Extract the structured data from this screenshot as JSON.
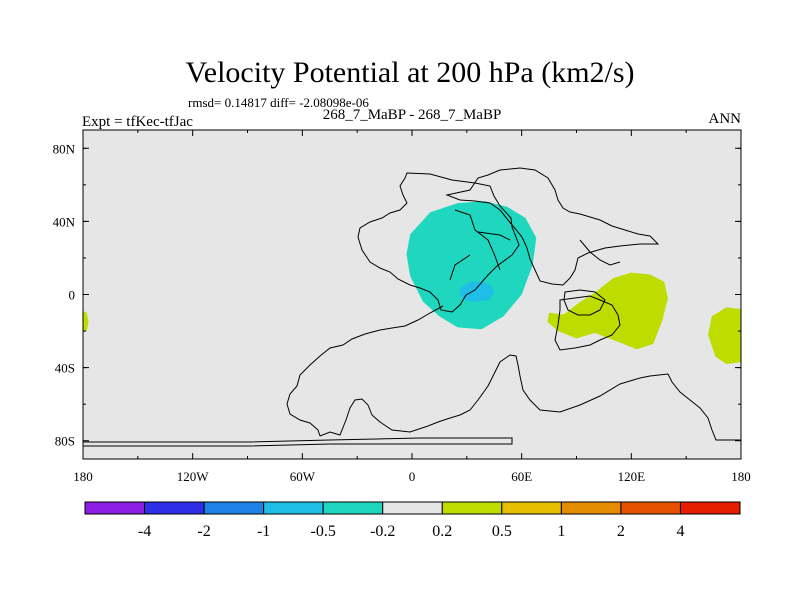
{
  "chart_data": {
    "type": "heatmap",
    "title": "Velocity Potential at 200 hPa (km2/s)",
    "stats": "rmsd= 0.14817 diff= -2.08098e-06",
    "experiment": "Expt = tfKec-tfJac",
    "subtitle": "268_7_MaBP - 268_7_MaBP",
    "season": "ANN",
    "xlim": [
      -180,
      180
    ],
    "ylim": [
      -90,
      90
    ],
    "x_ticks": [
      {
        "value": -180,
        "label": "180"
      },
      {
        "value": -120,
        "label": "120W"
      },
      {
        "value": -60,
        "label": "60W"
      },
      {
        "value": 0,
        "label": "0"
      },
      {
        "value": 60,
        "label": "60E"
      },
      {
        "value": 120,
        "label": "120E"
      },
      {
        "value": 180,
        "label": "180"
      }
    ],
    "y_ticks": [
      {
        "value": 80,
        "label": "80N"
      },
      {
        "value": 40,
        "label": "40N"
      },
      {
        "value": 0,
        "label": "0"
      },
      {
        "value": -40,
        "label": "40S"
      },
      {
        "value": -80,
        "label": "80S"
      }
    ],
    "colorbar": {
      "colors": [
        "#8c1ee6",
        "#2e2ee6",
        "#1e82e6",
        "#1ebee6",
        "#1ed7be",
        "#e6e6e6",
        "#bedc00",
        "#e6be00",
        "#e68c00",
        "#e65000",
        "#e61e00"
      ],
      "labels": [
        "-4",
        "-2",
        "-1",
        "-0.5",
        "-0.2",
        "0.2",
        "0.5",
        "1",
        "2",
        "4"
      ]
    },
    "regions": [
      {
        "name": "-0.5 to -0.2",
        "color": "#1ed7be",
        "points": [
          [
            -1,
            33
          ],
          [
            10,
            45
          ],
          [
            25,
            50
          ],
          [
            40,
            51
          ],
          [
            52,
            48
          ],
          [
            62,
            42
          ],
          [
            68,
            31
          ],
          [
            66,
            16
          ],
          [
            60,
            0
          ],
          [
            50,
            -12
          ],
          [
            38,
            -19
          ],
          [
            25,
            -18
          ],
          [
            15,
            -12
          ],
          [
            6,
            -4
          ],
          [
            -1,
            10
          ],
          [
            -3,
            22
          ]
        ]
      },
      {
        "name": "-1 to -0.5",
        "color": "#1ebee6",
        "points": [
          [
            27,
            4
          ],
          [
            32,
            7
          ],
          [
            38,
            7
          ],
          [
            43,
            5
          ],
          [
            45,
            1
          ],
          [
            42,
            -3
          ],
          [
            35,
            -4
          ],
          [
            29,
            -3
          ],
          [
            26,
            0
          ]
        ]
      },
      {
        "name": "0.2 to 0.5",
        "color": "#bedc00",
        "points": [
          [
            75,
            -10
          ],
          [
            83,
            -11
          ],
          [
            92,
            -4
          ],
          [
            100,
            1
          ],
          [
            110,
            9
          ],
          [
            120,
            12
          ],
          [
            130,
            11
          ],
          [
            138,
            7
          ],
          [
            140,
            -2
          ],
          [
            137,
            -14
          ],
          [
            132,
            -27
          ],
          [
            123,
            -30
          ],
          [
            113,
            -26
          ],
          [
            100,
            -21
          ],
          [
            90,
            -24
          ],
          [
            80,
            -20
          ],
          [
            74,
            -15
          ]
        ]
      },
      {
        "name": "0.2 to 0.5",
        "color": "#bedc00",
        "points": [
          [
            180,
            -8
          ],
          [
            172,
            -7
          ],
          [
            164,
            -12
          ],
          [
            162,
            -22
          ],
          [
            166,
            -34
          ],
          [
            172,
            -38
          ],
          [
            180,
            -37
          ]
        ]
      },
      {
        "name": "0.2 to 0.5",
        "color": "#bedc00",
        "points": [
          [
            -180,
            -9
          ],
          [
            -178,
            -10
          ],
          [
            -177,
            -15
          ],
          [
            -178,
            -20
          ],
          [
            -180,
            -20
          ]
        ]
      }
    ]
  }
}
